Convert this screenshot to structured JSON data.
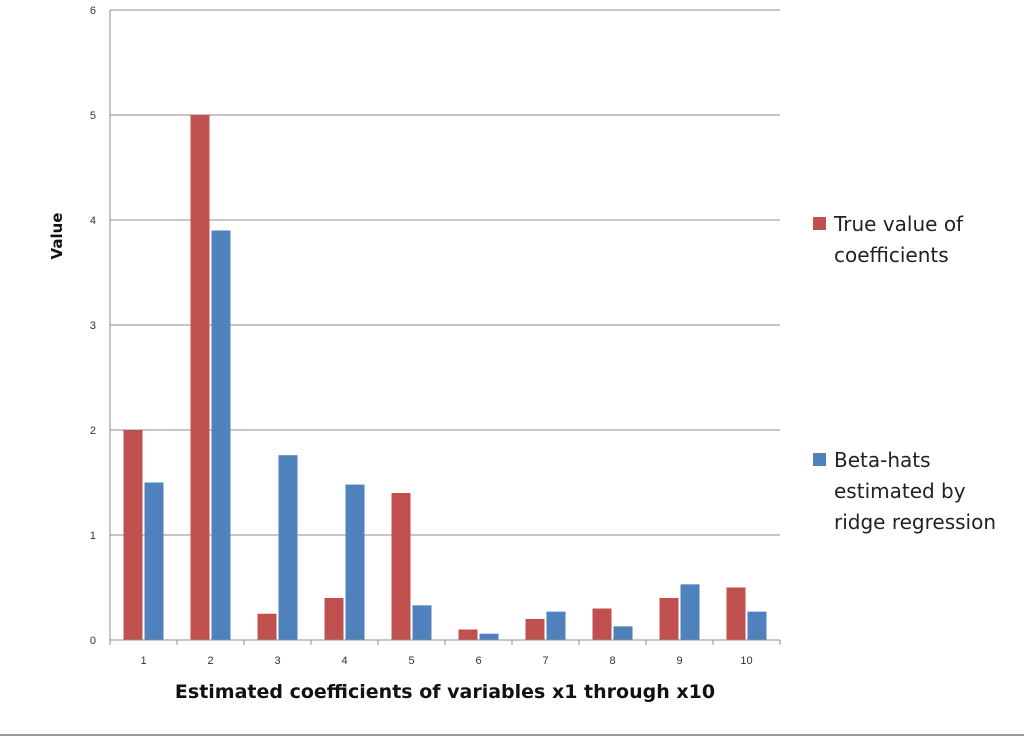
{
  "chart_data": {
    "type": "bar",
    "title": "",
    "xlabel": "Estimated coefficients of variables x1 through x10",
    "ylabel": "Value",
    "ylim": [
      0,
      6
    ],
    "yticks": [
      0,
      1,
      2,
      3,
      4,
      5,
      6
    ],
    "grid": true,
    "legend_position": "right",
    "categories": [
      "1",
      "2",
      "3",
      "4",
      "5",
      "6",
      "7",
      "8",
      "9",
      "10"
    ],
    "series": [
      {
        "name": "True value of coefficients",
        "legend_lines": [
          "True value of",
          "coefficients"
        ],
        "color": "#c0504d",
        "values": [
          2,
          5,
          0.25,
          0.4,
          1.4,
          0.1,
          0.2,
          0.3,
          0.4,
          0.5
        ]
      },
      {
        "name": "Beta-hats estimated by ridge regression",
        "legend_lines": [
          "Beta-hats",
          "estimated by",
          "ridge regression"
        ],
        "color": "#4f81bd",
        "values": [
          1.5,
          3.9,
          1.76,
          1.48,
          0.33,
          0.06,
          0.27,
          0.13,
          0.53,
          0.27
        ]
      }
    ]
  }
}
